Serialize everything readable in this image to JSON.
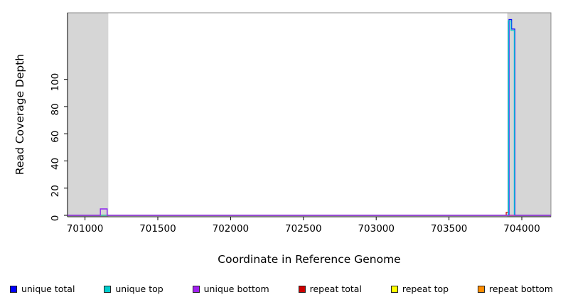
{
  "chart_data": {
    "type": "line",
    "title": "",
    "xlabel": "Coordinate in Reference Genome",
    "ylabel": "Read Coverage Depth",
    "xlim": [
      700880,
      704200
    ],
    "ylim": [
      0,
      150
    ],
    "xticks": [
      701000,
      701500,
      702000,
      702500,
      703000,
      703500,
      704000
    ],
    "yticks": [
      0,
      20,
      40,
      60,
      80,
      100
    ],
    "grid": false,
    "legend_position": "bottom",
    "plot_border_color": "#8a8a8a",
    "shaded_regions": [
      {
        "x0": 700880,
        "x1": 701160,
        "color": "#d6d6d6"
      },
      {
        "x0": 703900,
        "x1": 704200,
        "color": "#d6d6d6"
      }
    ],
    "series": [
      {
        "id": "unique-total",
        "name": "unique total",
        "color": "#0000ff",
        "z": 4,
        "points": [
          [
            700880,
            0
          ],
          [
            701105,
            0
          ],
          [
            701105,
            4.7
          ],
          [
            701152,
            4.7
          ],
          [
            701152,
            0
          ],
          [
            703912,
            0
          ],
          [
            703912,
            144
          ],
          [
            703930,
            144
          ],
          [
            703930,
            137
          ],
          [
            703952,
            137
          ],
          [
            703952,
            0
          ],
          [
            704200,
            0
          ]
        ]
      },
      {
        "id": "unique-top",
        "name": "unique top",
        "color": "#00cdcd",
        "z": 5,
        "points": [
          [
            700880,
            0
          ],
          [
            703908,
            0
          ],
          [
            703908,
            143
          ],
          [
            703926,
            143
          ],
          [
            703926,
            136
          ],
          [
            703948,
            136
          ],
          [
            703948,
            0
          ],
          [
            704200,
            0
          ]
        ]
      },
      {
        "id": "unique-bottom",
        "name": "unique bottom",
        "color": "#a020f0",
        "z": 6,
        "points": [
          [
            700880,
            0
          ],
          [
            701105,
            0
          ],
          [
            701105,
            4.7
          ],
          [
            701152,
            4.7
          ],
          [
            701152,
            0
          ],
          [
            704200,
            0
          ]
        ]
      },
      {
        "id": "repeat-total",
        "name": "repeat total",
        "color": "#cd0000",
        "z": 3,
        "points": [
          [
            700880,
            0
          ],
          [
            703893,
            0
          ],
          [
            703893,
            2.2
          ],
          [
            703908,
            2.2
          ],
          [
            703908,
            0
          ],
          [
            704200,
            0
          ]
        ]
      },
      {
        "id": "repeat-top",
        "name": "repeat top",
        "color": "#ffff00",
        "z": 1,
        "points": [
          [
            700880,
            0
          ],
          [
            704200,
            0
          ]
        ]
      },
      {
        "id": "repeat-bottom",
        "name": "repeat bottom",
        "color": "#ff8c00",
        "z": 2,
        "points": [
          [
            700880,
            0
          ],
          [
            704200,
            0
          ]
        ]
      }
    ]
  }
}
